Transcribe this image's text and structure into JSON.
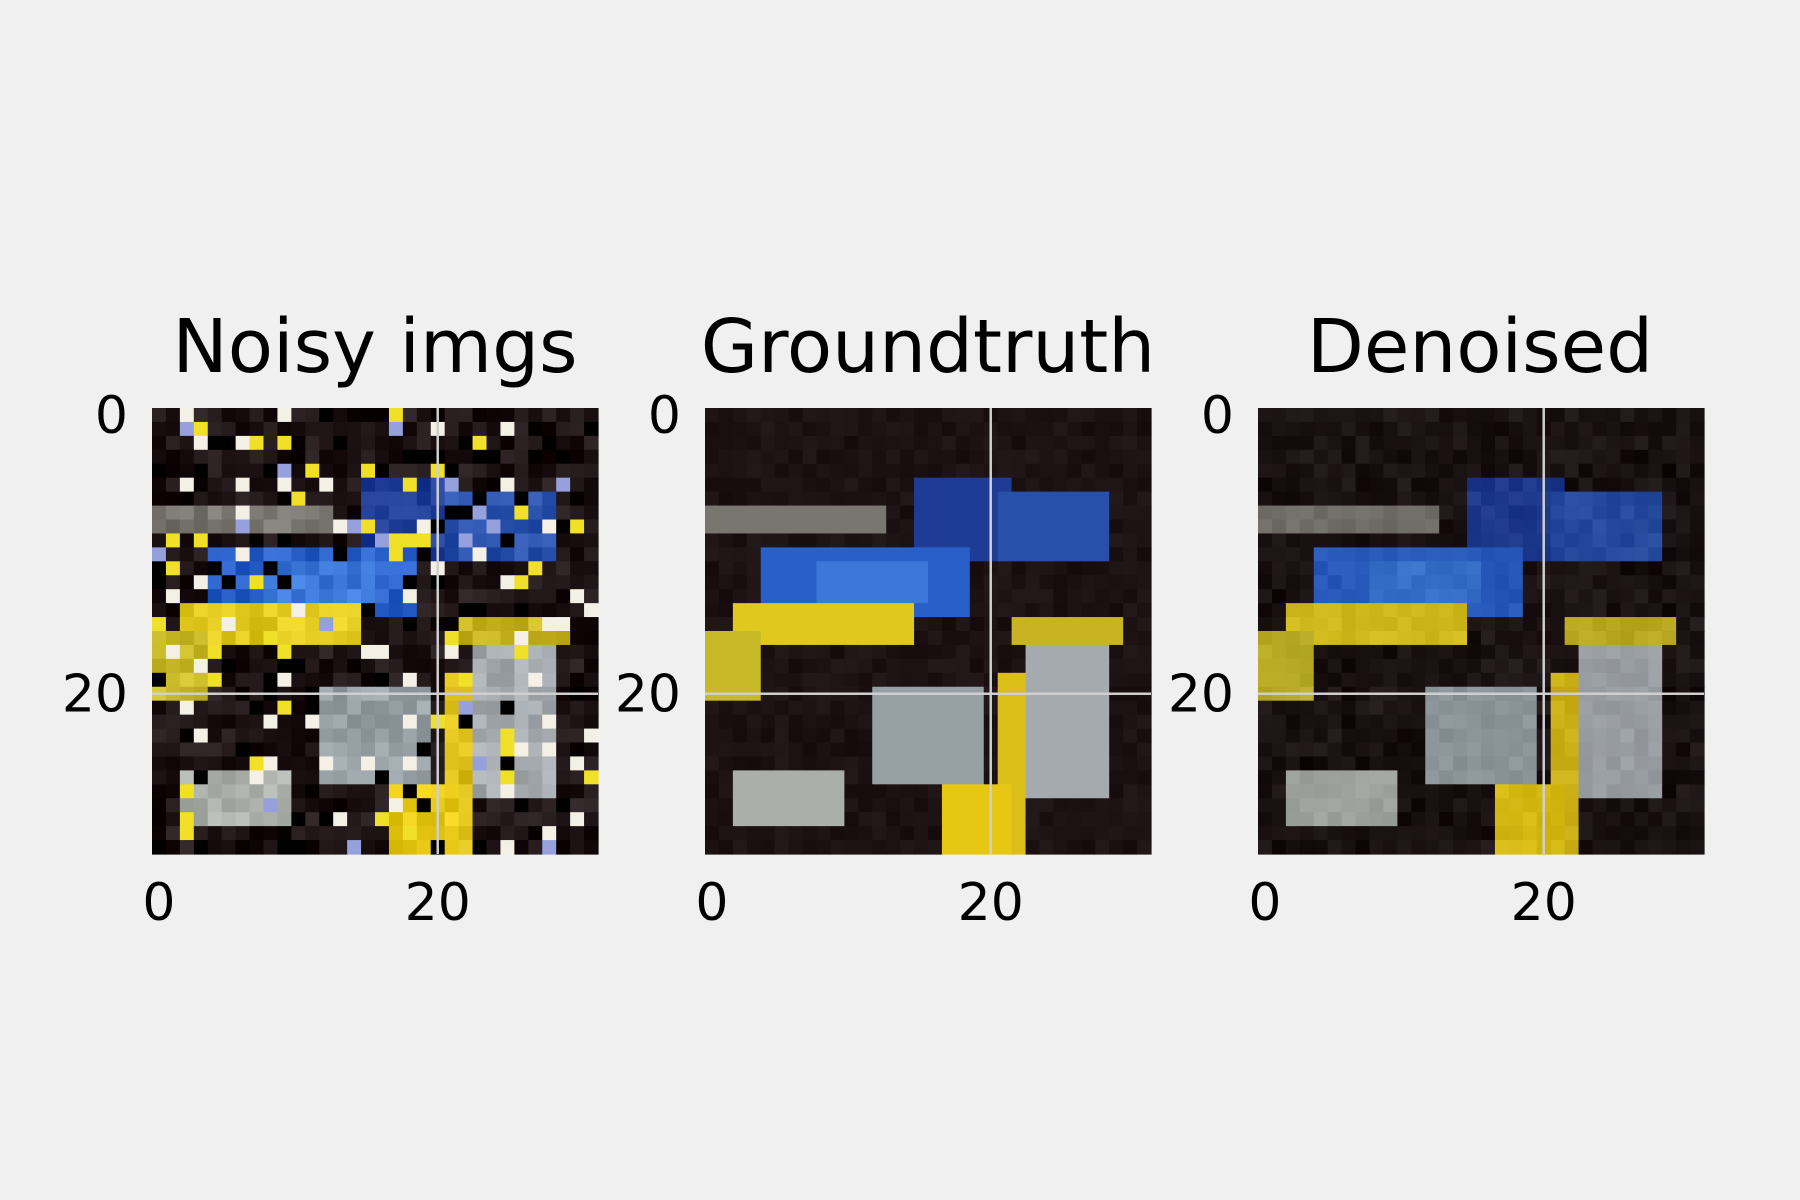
{
  "figure": {
    "background": "#f0f0f0",
    "grid_color": "#cfcfcf"
  },
  "chart_data": [
    {
      "type": "heatmap",
      "title": "Noisy imgs",
      "image_size": [
        32,
        32
      ],
      "xlim": [
        -0.5,
        31.5
      ],
      "ylim": [
        31.5,
        -0.5
      ],
      "xticks": [
        0,
        20
      ],
      "yticks": [
        0,
        20
      ],
      "grid": true,
      "content": "noisy RGB image of a blue and yellow toy car (salt-and-pepper style noise)"
    },
    {
      "type": "heatmap",
      "title": "Groundtruth",
      "image_size": [
        32,
        32
      ],
      "xlim": [
        -0.5,
        31.5
      ],
      "ylim": [
        31.5,
        -0.5
      ],
      "xticks": [
        0,
        20
      ],
      "yticks": [
        0,
        20
      ],
      "grid": true,
      "content": "clean RGB image of a blue and yellow toy car"
    },
    {
      "type": "heatmap",
      "title": "Denoised",
      "image_size": [
        32,
        32
      ],
      "xlim": [
        -0.5,
        31.5
      ],
      "ylim": [
        31.5,
        -0.5
      ],
      "xticks": [
        0,
        20
      ],
      "yticks": [
        0,
        20
      ],
      "grid": true,
      "content": "denoised RGB image of a blue and yellow toy car"
    }
  ]
}
